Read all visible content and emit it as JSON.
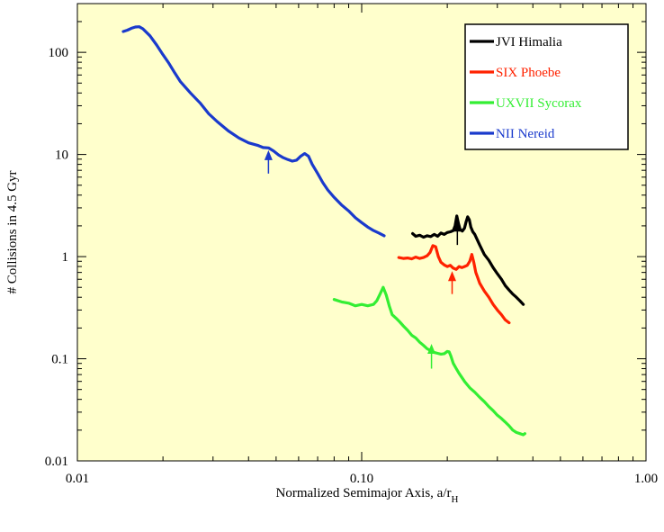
{
  "chart_data": {
    "type": "line",
    "x_scale": "log",
    "y_scale": "log",
    "xlim": [
      0.01,
      1.0
    ],
    "ylim": [
      0.01,
      300
    ],
    "xlabel_main": "Normalized Semimajor Axis, a/r",
    "xlabel_sub": "H",
    "ylabel": "# Collisions in 4.5 Gyr",
    "x_ticks": [
      {
        "v": 0.01,
        "label": "0.01"
      },
      {
        "v": 0.1,
        "label": "0.10"
      },
      {
        "v": 1.0,
        "label": "1.00"
      }
    ],
    "y_ticks": [
      {
        "v": 0.01,
        "label": "0.01"
      },
      {
        "v": 0.1,
        "label": "0.1"
      },
      {
        "v": 1,
        "label": "1"
      },
      {
        "v": 10,
        "label": "10"
      },
      {
        "v": 100,
        "label": "100"
      }
    ],
    "background": "#ffffcc",
    "legend_position": "top-right",
    "series": [
      {
        "name": "JVI Himalia",
        "color": "#000000",
        "x": [
          0.151,
          0.155,
          0.16,
          0.165,
          0.17,
          0.175,
          0.18,
          0.185,
          0.19,
          0.195,
          0.2,
          0.205,
          0.21,
          0.213,
          0.216,
          0.219,
          0.222,
          0.226,
          0.23,
          0.233,
          0.236,
          0.239,
          0.242,
          0.246,
          0.25,
          0.26,
          0.27,
          0.28,
          0.29,
          0.3,
          0.31,
          0.32,
          0.33,
          0.34,
          0.35,
          0.36,
          0.37
        ],
        "y": [
          1.68,
          1.58,
          1.62,
          1.55,
          1.6,
          1.57,
          1.65,
          1.58,
          1.7,
          1.65,
          1.72,
          1.75,
          1.8,
          2.0,
          2.5,
          2.1,
          1.85,
          1.78,
          1.9,
          2.2,
          2.45,
          2.3,
          1.95,
          1.75,
          1.65,
          1.3,
          1.05,
          0.92,
          0.78,
          0.68,
          0.6,
          0.52,
          0.47,
          0.43,
          0.4,
          0.37,
          0.34
        ]
      },
      {
        "name": "SIX Phoebe",
        "color": "#ff2200",
        "x": [
          0.135,
          0.14,
          0.145,
          0.15,
          0.155,
          0.16,
          0.165,
          0.17,
          0.174,
          0.178,
          0.182,
          0.186,
          0.19,
          0.195,
          0.2,
          0.205,
          0.21,
          0.215,
          0.22,
          0.225,
          0.23,
          0.235,
          0.24,
          0.244,
          0.248,
          0.252,
          0.256,
          0.26,
          0.27,
          0.28,
          0.29,
          0.3,
          0.31,
          0.32,
          0.33
        ],
        "y": [
          0.98,
          0.96,
          0.97,
          0.95,
          0.99,
          0.96,
          0.98,
          1.02,
          1.1,
          1.28,
          1.25,
          1.0,
          0.88,
          0.83,
          0.8,
          0.82,
          0.77,
          0.75,
          0.8,
          0.78,
          0.8,
          0.82,
          0.9,
          1.05,
          0.88,
          0.7,
          0.62,
          0.55,
          0.46,
          0.4,
          0.34,
          0.3,
          0.27,
          0.24,
          0.225
        ]
      },
      {
        "name": "UXVII Sycorax",
        "color": "#33ee33",
        "x": [
          0.08,
          0.085,
          0.09,
          0.095,
          0.1,
          0.105,
          0.11,
          0.113,
          0.116,
          0.119,
          0.122,
          0.125,
          0.128,
          0.132,
          0.136,
          0.14,
          0.145,
          0.15,
          0.155,
          0.16,
          0.165,
          0.17,
          0.175,
          0.18,
          0.185,
          0.19,
          0.195,
          0.2,
          0.203,
          0.206,
          0.21,
          0.215,
          0.22,
          0.23,
          0.24,
          0.25,
          0.26,
          0.27,
          0.28,
          0.29,
          0.3,
          0.31,
          0.32,
          0.33,
          0.34,
          0.35,
          0.36,
          0.37,
          0.375
        ],
        "y": [
          0.38,
          0.36,
          0.35,
          0.33,
          0.34,
          0.33,
          0.34,
          0.37,
          0.43,
          0.5,
          0.42,
          0.33,
          0.27,
          0.25,
          0.23,
          0.21,
          0.19,
          0.17,
          0.16,
          0.145,
          0.135,
          0.125,
          0.12,
          0.115,
          0.113,
          0.111,
          0.112,
          0.118,
          0.117,
          0.106,
          0.09,
          0.08,
          0.072,
          0.06,
          0.052,
          0.047,
          0.042,
          0.038,
          0.034,
          0.031,
          0.028,
          0.026,
          0.024,
          0.022,
          0.02,
          0.019,
          0.0185,
          0.018,
          0.0185
        ]
      },
      {
        "name": "NII Nereid",
        "color": "#1a3acc",
        "x": [
          0.0145,
          0.015,
          0.0155,
          0.016,
          0.0165,
          0.017,
          0.018,
          0.019,
          0.02,
          0.021,
          0.022,
          0.023,
          0.025,
          0.027,
          0.029,
          0.031,
          0.034,
          0.037,
          0.04,
          0.043,
          0.045,
          0.047,
          0.049,
          0.051,
          0.053,
          0.055,
          0.057,
          0.059,
          0.061,
          0.063,
          0.065,
          0.067,
          0.07,
          0.073,
          0.076,
          0.08,
          0.085,
          0.09,
          0.095,
          0.1,
          0.105,
          0.11,
          0.115,
          0.12
        ],
        "y": [
          160,
          165,
          172,
          177,
          178,
          170,
          145,
          118,
          95,
          78,
          63,
          52,
          40,
          32,
          25,
          21,
          17,
          14.5,
          13,
          12.3,
          11.7,
          11.6,
          10.8,
          9.9,
          9.3,
          8.9,
          8.6,
          8.8,
          9.6,
          10.2,
          9.6,
          8.0,
          6.5,
          5.3,
          4.5,
          3.8,
          3.2,
          2.8,
          2.4,
          2.15,
          1.95,
          1.8,
          1.7,
          1.6
        ]
      }
    ],
    "arrows": [
      {
        "x": 0.047,
        "y_tip": 11.0,
        "y_tail": 6.5,
        "color": "#1a3acc"
      },
      {
        "x": 0.217,
        "y_tip": 2.2,
        "y_tail": 1.3,
        "color": "#000000"
      },
      {
        "x": 0.208,
        "y_tip": 0.72,
        "y_tail": 0.43,
        "color": "#ff2200"
      },
      {
        "x": 0.176,
        "y_tip": 0.14,
        "y_tail": 0.08,
        "color": "#33ee33"
      }
    ]
  }
}
